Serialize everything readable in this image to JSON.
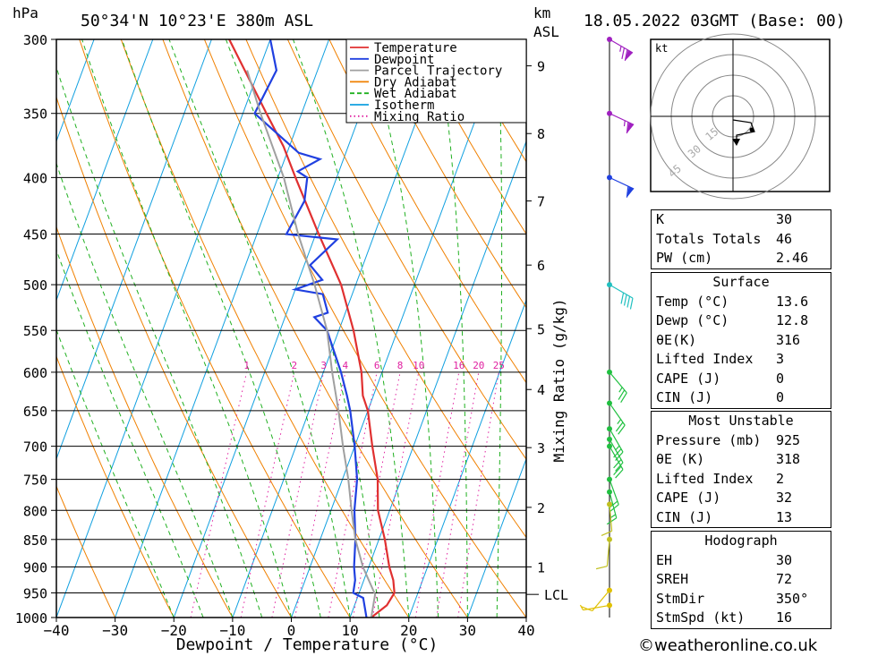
{
  "header": {
    "hpa_label": "hPa",
    "location": "50°34'N  10°23'E  380m  ASL",
    "km_label": "km",
    "asl_label": "ASL",
    "datetime": "18.05.2022  03GMT  (Base: 00)"
  },
  "footer": "©weatheronline.co.uk",
  "chart_data": {
    "type": "line",
    "xlabel": "Dewpoint / Temperature (°C)",
    "ylabel": "hPa",
    "right_label": "Mixing Ratio (g/kg)",
    "xlim": [
      -40,
      40
    ],
    "ylim": [
      1000,
      300
    ],
    "pressure_ticks": [
      300,
      350,
      400,
      450,
      500,
      550,
      600,
      650,
      700,
      750,
      800,
      850,
      900,
      950,
      1000
    ],
    "temp_ticks": [
      -40,
      -30,
      -20,
      -10,
      0,
      10,
      20,
      30,
      40
    ],
    "temp_tick_labels": [
      "−40",
      "−30",
      "−20",
      "−10",
      "0",
      "10",
      "20",
      "30",
      "40"
    ],
    "km_ticks": [
      {
        "label": "1",
        "p": 900
      },
      {
        "label": "2",
        "p": 795
      },
      {
        "label": "3",
        "p": 702
      },
      {
        "label": "4",
        "p": 622
      },
      {
        "label": "5",
        "p": 548
      },
      {
        "label": "6",
        "p": 480
      },
      {
        "label": "7",
        "p": 420
      },
      {
        "label": "8",
        "p": 365
      },
      {
        "label": "9",
        "p": 317
      }
    ],
    "lcl": {
      "label": "LCL",
      "p": 953
    },
    "mixing_ratio_labels": [
      "1",
      "2",
      "3",
      "4",
      "6",
      "8",
      "10",
      "16",
      "20",
      "25"
    ],
    "mixing_ratio_values": [
      1,
      2,
      3,
      4,
      6,
      8,
      10,
      16,
      20,
      25
    ],
    "legend": [
      {
        "name": "Temperature",
        "color": "#e03030",
        "style": "solid"
      },
      {
        "name": "Dewpoint",
        "color": "#2040e0",
        "style": "solid"
      },
      {
        "name": "Parcel Trajectory",
        "color": "#a0a0a0",
        "style": "solid"
      },
      {
        "name": "Dry Adiabat",
        "color": "#f08000",
        "style": "solid"
      },
      {
        "name": "Wet Adiabat",
        "color": "#20b020",
        "style": "dashed"
      },
      {
        "name": "Isotherm",
        "color": "#10a0e0",
        "style": "solid"
      },
      {
        "name": "Mixing Ratio",
        "color": "#e020a0",
        "style": "dotted"
      }
    ],
    "series": [
      {
        "name": "Temperature",
        "color": "#e03030",
        "points": [
          [
            1000,
            13.6
          ],
          [
            975,
            15.5
          ],
          [
            950,
            16
          ],
          [
            925,
            15
          ],
          [
            900,
            13.5
          ],
          [
            850,
            11
          ],
          [
            800,
            8
          ],
          [
            750,
            6
          ],
          [
            700,
            3
          ],
          [
            650,
            0
          ],
          [
            630,
            -1.8
          ],
          [
            600,
            -3.5
          ],
          [
            550,
            -7.5
          ],
          [
            500,
            -12.5
          ],
          [
            450,
            -19.5
          ],
          [
            400,
            -27
          ],
          [
            375,
            -31
          ],
          [
            350,
            -36
          ],
          [
            300,
            -47
          ]
        ]
      },
      {
        "name": "Dewpoint",
        "color": "#2040e0",
        "points": [
          [
            1000,
            12.8
          ],
          [
            960,
            11
          ],
          [
            950,
            9
          ],
          [
            925,
            8.5
          ],
          [
            900,
            7.5
          ],
          [
            850,
            6
          ],
          [
            800,
            4
          ],
          [
            750,
            2.5
          ],
          [
            700,
            0
          ],
          [
            650,
            -3
          ],
          [
            630,
            -4.5
          ],
          [
            600,
            -7
          ],
          [
            550,
            -12
          ],
          [
            535,
            -15
          ],
          [
            530,
            -13
          ],
          [
            510,
            -15
          ],
          [
            505,
            -20
          ],
          [
            495,
            -16
          ],
          [
            480,
            -19
          ],
          [
            455,
            -16
          ],
          [
            450,
            -25
          ],
          [
            420,
            -24
          ],
          [
            400,
            -25
          ],
          [
            395,
            -27
          ],
          [
            385,
            -24
          ],
          [
            380,
            -28
          ],
          [
            350,
            -38
          ],
          [
            320,
            -37
          ],
          [
            300,
            -40
          ]
        ]
      },
      {
        "name": "Parcel Trajectory",
        "color": "#a0a0a0",
        "points": [
          [
            1000,
            13.6
          ],
          [
            953,
            12.8
          ],
          [
            900,
            9
          ],
          [
            850,
            6
          ],
          [
            800,
            3.5
          ],
          [
            750,
            1
          ],
          [
            700,
            -2
          ],
          [
            650,
            -5
          ],
          [
            600,
            -8.5
          ],
          [
            550,
            -12
          ],
          [
            500,
            -17
          ],
          [
            450,
            -23
          ],
          [
            400,
            -29
          ],
          [
            350,
            -37
          ],
          [
            320,
            -42
          ]
        ]
      }
    ]
  },
  "hodograph": {
    "unit_label": "kt",
    "ring_labels": [
      "15",
      "30",
      "45"
    ]
  },
  "wind_barbs": [
    {
      "p": 300,
      "dir": 300,
      "spd": 75,
      "color": "#a020c0"
    },
    {
      "p": 350,
      "dir": 295,
      "spd": 65,
      "color": "#a020c0"
    },
    {
      "p": 400,
      "dir": 295,
      "spd": 60,
      "color": "#2040e0"
    },
    {
      "p": 500,
      "dir": 300,
      "spd": 40,
      "color": "#20c0c0"
    },
    {
      "p": 600,
      "dir": 320,
      "spd": 25,
      "color": "#20c040"
    },
    {
      "p": 640,
      "dir": 325,
      "spd": 25,
      "color": "#20c040"
    },
    {
      "p": 675,
      "dir": 330,
      "spd": 25,
      "color": "#20c040"
    },
    {
      "p": 690,
      "dir": 330,
      "spd": 20,
      "color": "#20c040"
    },
    {
      "p": 700,
      "dir": 330,
      "spd": 20,
      "color": "#20c040"
    },
    {
      "p": 750,
      "dir": 340,
      "spd": 20,
      "color": "#20c040"
    },
    {
      "p": 770,
      "dir": 345,
      "spd": 15,
      "color": "#20c040"
    },
    {
      "p": 790,
      "dir": 355,
      "spd": 12,
      "color": "#c0c020"
    },
    {
      "p": 850,
      "dir": 5,
      "spd": 10,
      "color": "#c0c020"
    },
    {
      "p": 945,
      "dir": 40,
      "spd": 10,
      "color": "#e0c000"
    },
    {
      "p": 975,
      "dir": 80,
      "spd": 5,
      "color": "#e0c000"
    }
  ],
  "indices": [
    {
      "label": "K",
      "value": "30"
    },
    {
      "label": "Totals Totals",
      "value": "46"
    },
    {
      "label": "PW (cm)",
      "value": "2.46"
    }
  ],
  "surface": {
    "title": "Surface",
    "rows": [
      {
        "label": "Temp (°C)",
        "value": "13.6"
      },
      {
        "label": "Dewp (°C)",
        "value": "12.8"
      },
      {
        "label": "θE(K)",
        "value": "316"
      },
      {
        "label": "Lifted Index",
        "value": "3"
      },
      {
        "label": "CAPE (J)",
        "value": "0"
      },
      {
        "label": "CIN (J)",
        "value": "0"
      }
    ]
  },
  "most_unstable": {
    "title": "Most Unstable",
    "rows": [
      {
        "label": "Pressure (mb)",
        "value": "925"
      },
      {
        "label": "θE (K)",
        "value": "318"
      },
      {
        "label": "Lifted Index",
        "value": "2"
      },
      {
        "label": "CAPE (J)",
        "value": "32"
      },
      {
        "label": "CIN (J)",
        "value": "13"
      }
    ]
  },
  "hodograph_table": {
    "title": "Hodograph",
    "rows": [
      {
        "label": "EH",
        "value": "30"
      },
      {
        "label": "SREH",
        "value": "72"
      },
      {
        "label": "StmDir",
        "value": "350°"
      },
      {
        "label": "StmSpd (kt)",
        "value": "16"
      }
    ]
  }
}
